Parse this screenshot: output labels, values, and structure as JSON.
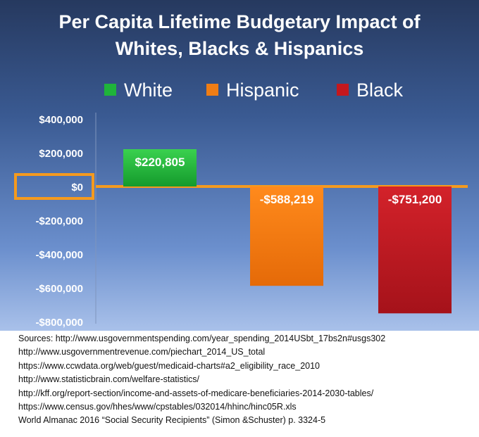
{
  "chart_data": {
    "type": "bar",
    "title_line1": "Per Capita Lifetime Budgetary Impact of",
    "title_line2": "Whites, Blacks & Hispanics",
    "categories": [
      "White",
      "Hispanic",
      "Black"
    ],
    "values": [
      220805,
      -588219,
      -751200
    ],
    "data_labels": [
      "$220,805",
      "-$588,219",
      "-$751,200"
    ],
    "legend": [
      {
        "name": "White",
        "color": "#1fb43a"
      },
      {
        "name": "Hispanic",
        "color": "#f07d14"
      },
      {
        "name": "Black",
        "color": "#c4181d"
      }
    ],
    "legend_position": "top",
    "ylim": [
      -800000,
      400000
    ],
    "yticks": [
      400000,
      200000,
      0,
      -200000,
      -400000,
      -600000,
      -800000
    ],
    "ytick_labels": [
      "$400,000",
      "$200,000",
      "$0",
      "-$200,000",
      "-$400,000",
      "-$600,000",
      "-$800,000"
    ],
    "grid": false,
    "highlight_color": "#f59a1e"
  },
  "sources": [
    "Sources: http://www.usgovernmentspending.com/year_spending_2014USbt_17bs2n#usgs302",
    "http://www.usgovernmentrevenue.com/piechart_2014_US_total",
    "https://www.ccwdata.org/web/guest/medicaid-charts#a2_eligibility_race_2010",
    "http://www.statisticbrain.com/welfare-statistics/",
    "http://kff.org/report-section/income-and-assets-of-medicare-beneficiaries-2014-2030-tables/",
    "https://www.census.gov/hhes/www/cpstables/032014/hhinc/hinc05R.xls",
    "World Almanac 2016 “Social Security Recipients” (Simon &Schuster) p. 3324-5"
  ]
}
